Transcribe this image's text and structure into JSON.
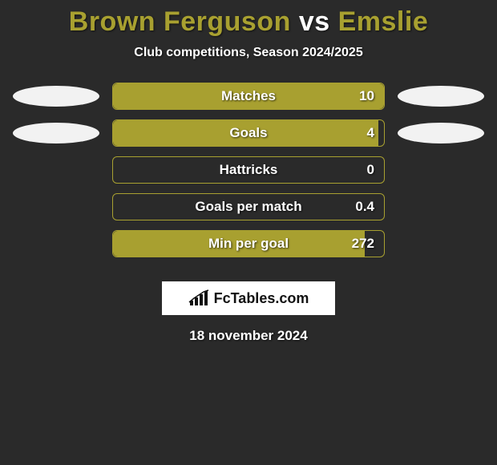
{
  "title": {
    "player1": "Brown Ferguson",
    "vs": "vs",
    "player2": "Emslie",
    "color1": "#a8a030",
    "vs_color": "#ffffff",
    "color2": "#a8a030"
  },
  "subtitle": "Club competitions, Season 2024/2025",
  "bars": {
    "bg_color": "#2a2a2a",
    "border_color": "#a8a030",
    "fill_color": "#a8a030",
    "oval_color": "#f2f2f2",
    "items": [
      {
        "label": "Matches",
        "value": "10",
        "fill_pct": 100,
        "show_ovals": true
      },
      {
        "label": "Goals",
        "value": "4",
        "fill_pct": 98,
        "show_ovals": true
      },
      {
        "label": "Hattricks",
        "value": "0",
        "fill_pct": 0,
        "show_ovals": false
      },
      {
        "label": "Goals per match",
        "value": "0.4",
        "fill_pct": 0,
        "show_ovals": false
      },
      {
        "label": "Min per goal",
        "value": "272",
        "fill_pct": 93,
        "show_ovals": false
      }
    ]
  },
  "logo": {
    "text": "FcTables.com"
  },
  "date": "18 november 2024"
}
